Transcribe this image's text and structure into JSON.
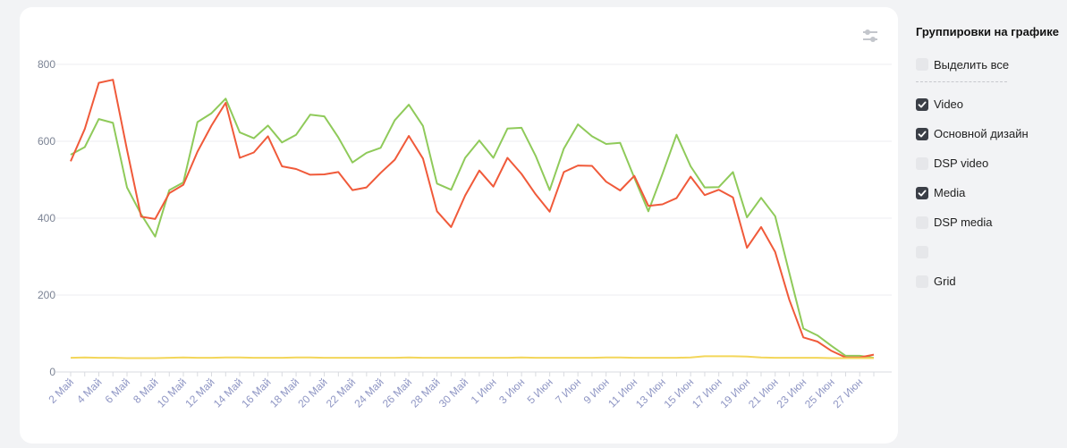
{
  "chart_data": {
    "type": "line",
    "ylim": [
      0,
      800
    ],
    "yticks": [
      0,
      200,
      400,
      600,
      800
    ],
    "grid": true,
    "categories": [
      "2 Май",
      "3 Май",
      "4 Май",
      "5 Май",
      "6 Май",
      "7 Май",
      "8 Май",
      "9 Май",
      "10 Май",
      "11 Май",
      "12 Май",
      "13 Май",
      "14 Май",
      "15 Май",
      "16 Май",
      "17 Май",
      "18 Май",
      "19 Май",
      "20 Май",
      "21 Май",
      "22 Май",
      "23 Май",
      "24 Май",
      "25 Май",
      "26 Май",
      "27 Май",
      "28 Май",
      "29 Май",
      "30 Май",
      "31 Май",
      "1 Июн",
      "2 Июн",
      "3 Июн",
      "4 Июн",
      "5 Июн",
      "6 Июн",
      "7 Июн",
      "8 Июн",
      "9 Июн",
      "10 Июн",
      "11 Июн",
      "12 Июн",
      "13 Июн",
      "14 Июн",
      "15 Июн",
      "16 Июн",
      "17 Июн",
      "18 Июн",
      "19 Июн",
      "20 Июн",
      "21 Июн",
      "22 Июн",
      "23 Июн",
      "24 Июн",
      "25 Июн",
      "26 Июн",
      "27 Июн",
      "28 Июн"
    ],
    "tick_labels": [
      "2 Май",
      "4 Май",
      "6 Май",
      "8 Май",
      "10 Май",
      "12 Май",
      "14 Май",
      "16 Май",
      "18 Май",
      "20 Май",
      "22 Май",
      "24 Май",
      "26 Май",
      "28 Май",
      "30 Май",
      "1 Июн",
      "3 Июн",
      "5 Июн",
      "7 Июн",
      "9 Июн",
      "11 Июн",
      "13 Июн",
      "15 Июн",
      "17 Июн",
      "19 Июн",
      "21 Июн",
      "23 Июн",
      "25 Июн",
      "27 Июн"
    ],
    "series": [
      {
        "color": "#8fca5a",
        "values": [
          565,
          585,
          658,
          648,
          480,
          410,
          352,
          473,
          493,
          650,
          673,
          711,
          623,
          608,
          641,
          597,
          617,
          669,
          665,
          610,
          545,
          570,
          583,
          655,
          695,
          640,
          490,
          474,
          557,
          602,
          557,
          633,
          635,
          562,
          473,
          581,
          644,
          613,
          593,
          596,
          505,
          418,
          515,
          617,
          535,
          480,
          481,
          520,
          402,
          453,
          405,
          258,
          113,
          95,
          68,
          42,
          42,
          37
        ]
      },
      {
        "color": "#f05a3a",
        "values": [
          548,
          632,
          752,
          760,
          578,
          404,
          398,
          465,
          487,
          573,
          641,
          700,
          557,
          571,
          613,
          535,
          528,
          513,
          514,
          520,
          473,
          480,
          518,
          552,
          614,
          555,
          418,
          377,
          459,
          524,
          482,
          557,
          515,
          462,
          417,
          520,
          537,
          536,
          495,
          472,
          510,
          432,
          436,
          452,
          508,
          460,
          474,
          454,
          323,
          377,
          312,
          188,
          90,
          79,
          55,
          38,
          38,
          45
        ]
      },
      {
        "color": "#f3d65a",
        "values": [
          37,
          38,
          37,
          37,
          36,
          36,
          36,
          37,
          38,
          37,
          37,
          38,
          38,
          37,
          37,
          37,
          38,
          38,
          37,
          37,
          37,
          37,
          37,
          37,
          38,
          37,
          37,
          37,
          37,
          37,
          37,
          37,
          38,
          37,
          37,
          37,
          37,
          37,
          38,
          38,
          37,
          37,
          37,
          37,
          38,
          41,
          41,
          41,
          40,
          38,
          37,
          37,
          37,
          37,
          36,
          36,
          36,
          36
        ]
      }
    ]
  },
  "legend": {
    "title": "Группировки на графике",
    "select_all": "Выделить все",
    "items": [
      {
        "label": "Video",
        "checked": true
      },
      {
        "label": "Основной дизайн",
        "checked": true
      },
      {
        "label": "DSP video",
        "checked": false
      },
      {
        "label": "Media",
        "checked": true
      },
      {
        "label": "DSP media",
        "checked": false
      },
      {
        "label": "",
        "checked": false
      },
      {
        "label": "Grid",
        "checked": false
      }
    ]
  },
  "settings_icon": "sliders-icon"
}
